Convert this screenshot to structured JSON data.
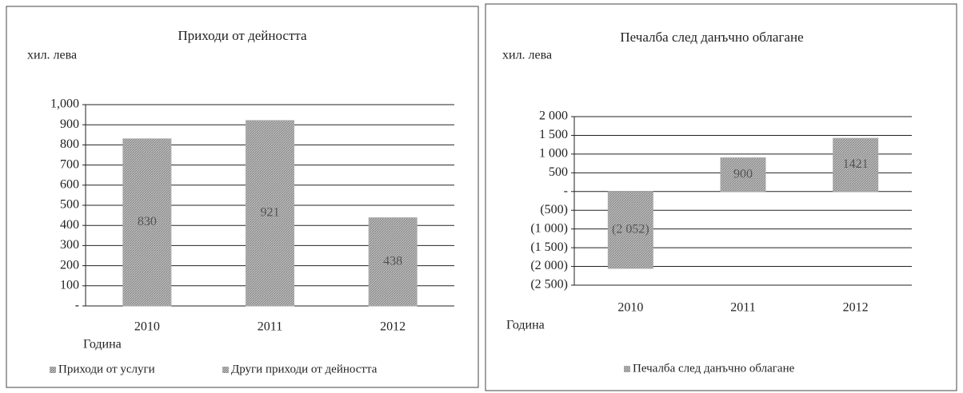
{
  "chart_data": [
    {
      "type": "bar",
      "title": "Приходи от дейността",
      "y_label": "хил. лева",
      "x_label": "Година",
      "categories": [
        "2010",
        "2011",
        "2012"
      ],
      "series": [
        {
          "name": "Приходи от услуги",
          "color": "#a8a8a8",
          "values": [
            830,
            921,
            438
          ]
        },
        {
          "name": "Други приходи от дейността",
          "color": "#c8c8c8",
          "values": [
            null,
            null,
            null
          ]
        }
      ],
      "ylim": [
        0,
        1000
      ],
      "yticks": [
        {
          "value": 0,
          "label": "-"
        },
        100,
        200,
        300,
        400,
        500,
        600,
        700,
        800,
        900,
        {
          "value": 1000,
          "label": "1,000"
        }
      ],
      "grid": true,
      "legend": "bottom"
    },
    {
      "type": "bar",
      "title": "Печалба след данъчно облагане",
      "y_label": "хил. лева",
      "x_label": "Година",
      "categories": [
        "2010",
        "2011",
        "2012"
      ],
      "series": [
        {
          "name": "Печалба след данъчно облагане",
          "color": "#a8a8a8",
          "values": [
            -2052,
            900,
            1421
          ],
          "value_labels": [
            "(2 052)",
            "900",
            "1421"
          ]
        }
      ],
      "ylim": [
        -2500,
        2000
      ],
      "yticks": [
        {
          "value": 2000,
          "label": "2 000"
        },
        {
          "value": 1500,
          "label": "1 500"
        },
        {
          "value": 1000,
          "label": "1 000"
        },
        500,
        {
          "value": 0,
          "label": "-"
        },
        {
          "value": -500,
          "label": "(500)"
        },
        {
          "value": -1000,
          "label": "(1 000)"
        },
        {
          "value": -1500,
          "label": "(1 500)"
        },
        {
          "value": -2000,
          "label": "(2 000)"
        },
        {
          "value": -2500,
          "label": "(2 500)"
        }
      ],
      "grid": true,
      "legend": "bottom"
    }
  ]
}
